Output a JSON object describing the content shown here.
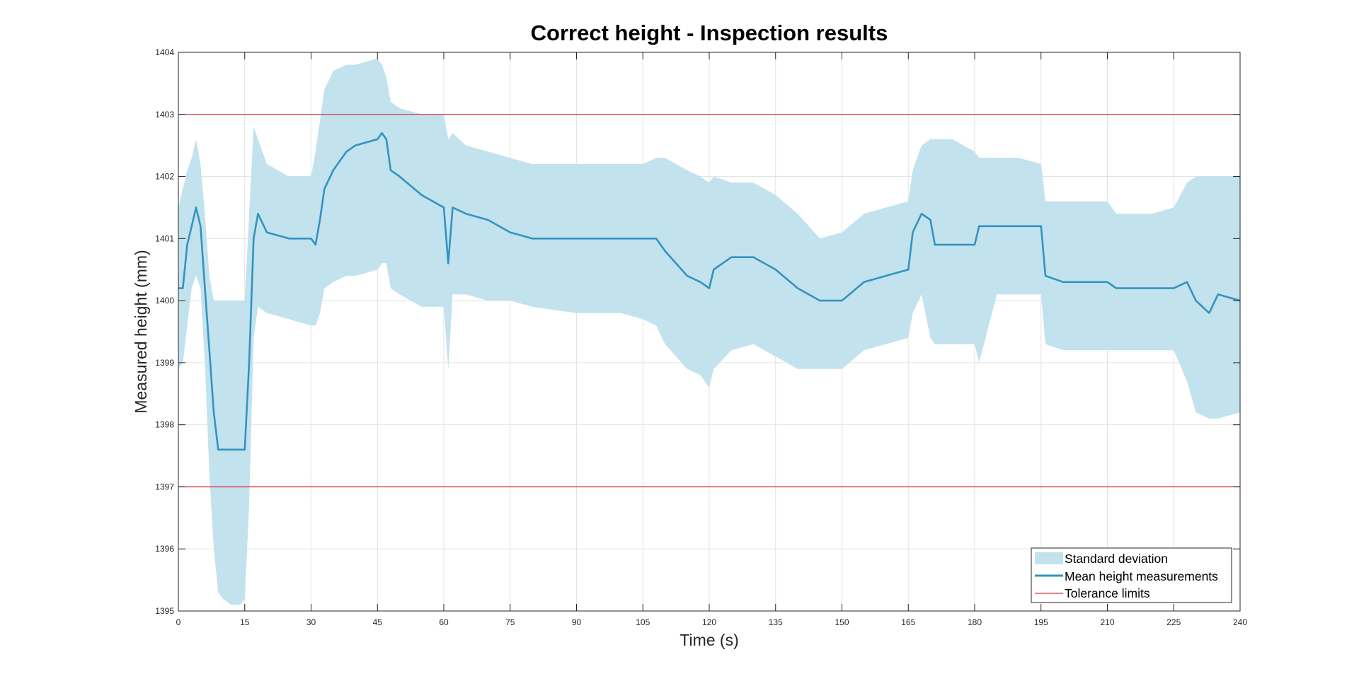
{
  "chart_data": {
    "type": "line",
    "title": "Correct height - Inspection results",
    "xlabel": "Time (s)",
    "ylabel": "Measured height (mm)",
    "xlim": [
      0,
      240
    ],
    "ylim": [
      1395,
      1404
    ],
    "xticks": [
      0,
      15,
      30,
      45,
      60,
      75,
      90,
      105,
      120,
      135,
      150,
      165,
      180,
      195,
      210,
      225,
      240
    ],
    "yticks": [
      1395,
      1396,
      1397,
      1398,
      1399,
      1400,
      1401,
      1402,
      1403,
      1404
    ],
    "grid": true,
    "legend_position": "bottom-right",
    "legend": [
      "Standard deviation",
      "Mean height measurements",
      "Tolerance limits"
    ],
    "colors": {
      "band": "#c2e2ee",
      "mean": "#3493bf",
      "tolerance": "#d23a3a"
    },
    "tolerance_limits": [
      1397,
      1403
    ],
    "series": [
      {
        "name": "Mean height measurements",
        "style": "line",
        "x": [
          0,
          1,
          2,
          3,
          4,
          5,
          6,
          7,
          8,
          9,
          10,
          12,
          14,
          15,
          16,
          17,
          18,
          20,
          25,
          30,
          31,
          32,
          33,
          35,
          38,
          40,
          45,
          46,
          47,
          48,
          50,
          55,
          60,
          61,
          62,
          65,
          70,
          75,
          80,
          90,
          100,
          105,
          108,
          110,
          115,
          118,
          120,
          121,
          125,
          130,
          135,
          140,
          145,
          150,
          155,
          160,
          165,
          166,
          168,
          170,
          171,
          172,
          175,
          180,
          181,
          185,
          190,
          195,
          196,
          200,
          205,
          210,
          212,
          215,
          220,
          225,
          228,
          230,
          233,
          235,
          240
        ],
        "y": [
          1400.2,
          1400.2,
          1400.9,
          1401.2,
          1401.5,
          1401.2,
          1400.2,
          1399.2,
          1398.2,
          1397.6,
          1397.6,
          1397.6,
          1397.6,
          1397.6,
          1399.0,
          1401.0,
          1401.4,
          1401.1,
          1401.0,
          1401.0,
          1400.9,
          1401.3,
          1401.8,
          1402.1,
          1402.4,
          1402.5,
          1402.6,
          1402.7,
          1402.6,
          1402.1,
          1402.0,
          1401.7,
          1401.5,
          1400.6,
          1401.5,
          1401.4,
          1401.3,
          1401.1,
          1401.0,
          1401.0,
          1401.0,
          1401.0,
          1401.0,
          1400.8,
          1400.4,
          1400.3,
          1400.2,
          1400.5,
          1400.7,
          1400.7,
          1400.5,
          1400.2,
          1400.0,
          1400.0,
          1400.3,
          1400.4,
          1400.5,
          1401.1,
          1401.4,
          1401.3,
          1400.9,
          1400.9,
          1400.9,
          1400.9,
          1401.2,
          1401.2,
          1401.2,
          1401.2,
          1400.4,
          1400.3,
          1400.3,
          1400.3,
          1400.2,
          1400.2,
          1400.2,
          1400.2,
          1400.3,
          1400.0,
          1399.8,
          1400.1,
          1400.0
        ]
      },
      {
        "name": "Standard deviation",
        "style": "band",
        "x": [
          0,
          1,
          2,
          3,
          4,
          5,
          6,
          7,
          8,
          9,
          10,
          12,
          14,
          15,
          16,
          17,
          18,
          20,
          25,
          30,
          31,
          32,
          33,
          35,
          38,
          40,
          45,
          46,
          47,
          48,
          50,
          55,
          60,
          61,
          62,
          65,
          70,
          75,
          80,
          90,
          100,
          105,
          108,
          110,
          115,
          118,
          120,
          121,
          125,
          130,
          135,
          140,
          145,
          150,
          155,
          160,
          165,
          166,
          168,
          170,
          171,
          172,
          175,
          180,
          181,
          185,
          190,
          195,
          196,
          200,
          205,
          210,
          212,
          215,
          220,
          225,
          228,
          230,
          233,
          235,
          240
        ],
        "upper": [
          1401.5,
          1401.8,
          1402.1,
          1402.3,
          1402.6,
          1402.2,
          1401.4,
          1400.4,
          1400.0,
          1400.0,
          1400.0,
          1400.0,
          1400.0,
          1400.0,
          1401.4,
          1402.8,
          1402.6,
          1402.2,
          1402.0,
          1402.0,
          1402.4,
          1402.9,
          1403.4,
          1403.7,
          1403.8,
          1403.8,
          1403.9,
          1403.8,
          1403.6,
          1403.2,
          1403.1,
          1403.0,
          1403.0,
          1402.6,
          1402.7,
          1402.5,
          1402.4,
          1402.3,
          1402.2,
          1402.2,
          1402.2,
          1402.2,
          1402.3,
          1402.3,
          1402.1,
          1402.0,
          1401.9,
          1402.0,
          1401.9,
          1401.9,
          1401.7,
          1401.4,
          1401.0,
          1401.1,
          1401.4,
          1401.5,
          1401.6,
          1402.1,
          1402.5,
          1402.6,
          1402.6,
          1402.6,
          1402.6,
          1402.4,
          1402.3,
          1402.3,
          1402.3,
          1402.2,
          1401.6,
          1401.6,
          1401.6,
          1401.6,
          1401.4,
          1401.4,
          1401.4,
          1401.5,
          1401.9,
          1402.0,
          1402.0,
          1402.0,
          1402.0
        ],
        "lower": [
          1398.9,
          1399.0,
          1399.6,
          1400.2,
          1400.4,
          1400.2,
          1399.0,
          1397.2,
          1396.0,
          1395.3,
          1395.2,
          1395.1,
          1395.1,
          1395.2,
          1396.7,
          1399.4,
          1399.9,
          1399.8,
          1399.7,
          1399.6,
          1399.6,
          1399.8,
          1400.2,
          1400.3,
          1400.4,
          1400.4,
          1400.5,
          1400.6,
          1400.6,
          1400.2,
          1400.1,
          1399.9,
          1399.9,
          1398.9,
          1400.1,
          1400.1,
          1400.0,
          1400.0,
          1399.9,
          1399.8,
          1399.8,
          1399.7,
          1399.6,
          1399.3,
          1398.9,
          1398.8,
          1398.6,
          1398.9,
          1399.2,
          1399.3,
          1399.1,
          1398.9,
          1398.9,
          1398.9,
          1399.2,
          1399.3,
          1399.4,
          1399.8,
          1400.1,
          1399.4,
          1399.3,
          1399.3,
          1399.3,
          1399.3,
          1399.0,
          1400.1,
          1400.1,
          1400.1,
          1399.3,
          1399.2,
          1399.2,
          1399.2,
          1399.2,
          1399.2,
          1399.2,
          1399.2,
          1398.7,
          1398.2,
          1398.1,
          1398.1,
          1398.2
        ]
      },
      {
        "name": "Tolerance limits",
        "style": "hline",
        "values": [
          1397,
          1403
        ]
      }
    ]
  }
}
